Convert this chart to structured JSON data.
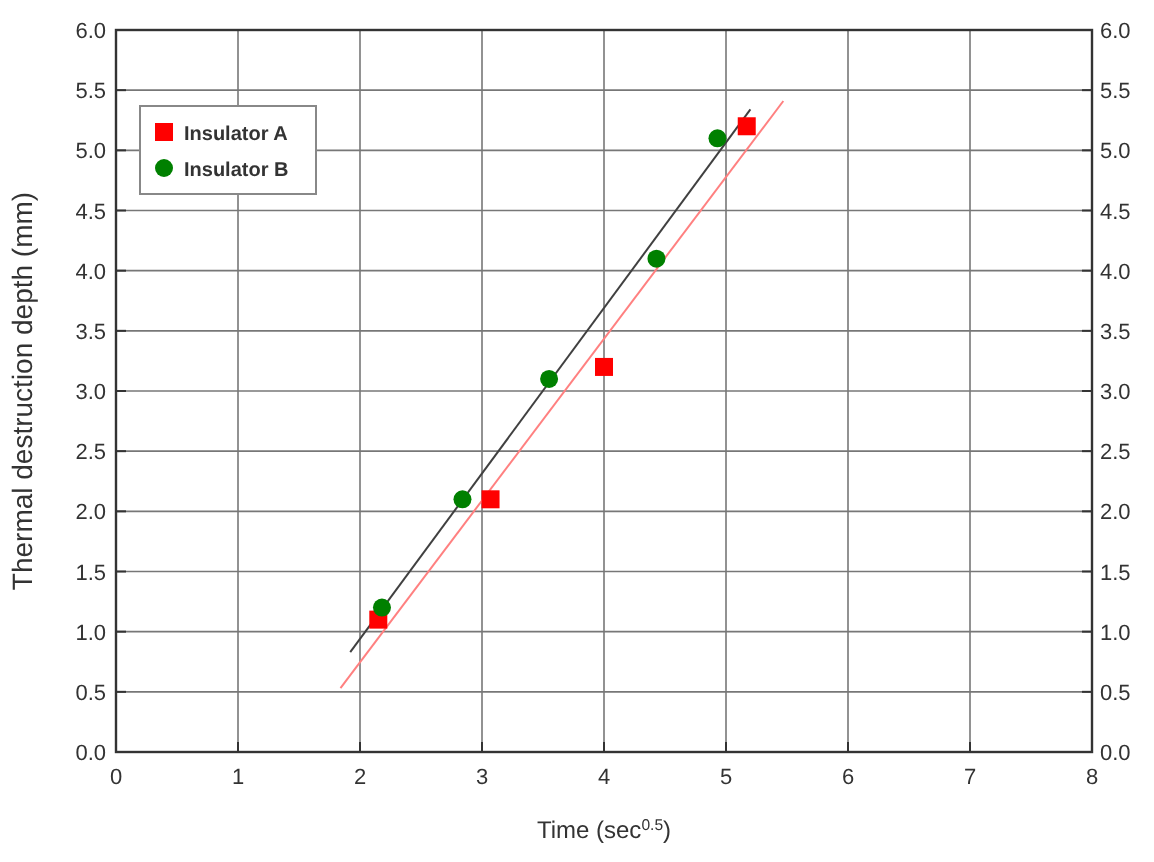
{
  "chart_data": {
    "type": "scatter",
    "xlabel": "Time (sec$^{0.5}$)",
    "ylabel": "Thermal destruction depth (mm)",
    "xlim": [
      0,
      8
    ],
    "xticks": [
      0,
      1,
      2,
      3,
      4,
      5,
      6,
      7,
      8
    ],
    "ylim": [
      0,
      6
    ],
    "yticks": [
      {
        "value": 0,
        "label": "0.0"
      },
      {
        "value": 0.5,
        "label": "0.5"
      },
      {
        "value": 1,
        "label": "1.0"
      },
      {
        "value": 1.5,
        "label": "1.5"
      },
      {
        "value": 2,
        "label": "2.0"
      },
      {
        "value": 2.5,
        "label": "2.5"
      },
      {
        "value": 3,
        "label": "3.0"
      },
      {
        "value": 3.5,
        "label": "3.5"
      },
      {
        "value": 4,
        "label": "4.0"
      },
      {
        "value": 4.5,
        "label": "4.5"
      },
      {
        "value": 5,
        "label": "5.0"
      },
      {
        "value": 5.5,
        "label": "5.5"
      },
      {
        "value": 6,
        "label": "6.0"
      }
    ],
    "y2lim": [
      0,
      6
    ],
    "y2ticks": [
      {
        "value": 0,
        "label": "0.0"
      },
      {
        "value": 0.5,
        "label": "0.5"
      },
      {
        "value": 1,
        "label": "1.0"
      },
      {
        "value": 1.5,
        "label": "1.5"
      },
      {
        "value": 2,
        "label": "2.0"
      },
      {
        "value": 2.5,
        "label": "2.5"
      },
      {
        "value": 3,
        "label": "3.0"
      },
      {
        "value": 3.5,
        "label": "3.5"
      },
      {
        "value": 4,
        "label": "4.0"
      },
      {
        "value": 4.5,
        "label": "4.5"
      },
      {
        "value": 5,
        "label": "5.0"
      },
      {
        "value": 5.5,
        "label": "5.5"
      },
      {
        "value": 6,
        "label": "6.0"
      }
    ],
    "grid": true,
    "legend": "top left",
    "series": [
      {
        "name": "Insulator A",
        "marker": "square",
        "color": "#ff0000",
        "x": [
          2.15,
          3.07,
          4.0,
          5.17
        ],
        "values": [
          1.1,
          2.1,
          3.2,
          5.2
        ]
      },
      {
        "name": "Insulator B",
        "marker": "circle",
        "color": "#008000",
        "x": [
          2.18,
          2.84,
          3.55,
          4.43,
          4.93
        ],
        "values": [
          1.2,
          2.1,
          3.1,
          4.1,
          5.1
        ]
      },
      {
        "type": "line",
        "marker": "none",
        "color": "#404040",
        "x": [
          1.92,
          5.2
        ],
        "values": [
          0.83,
          5.34
        ]
      },
      {
        "type": "line",
        "marker": "none",
        "color": "#ff8080",
        "x": [
          1.84,
          5.47
        ],
        "values": [
          0.53,
          5.41
        ]
      }
    ]
  }
}
